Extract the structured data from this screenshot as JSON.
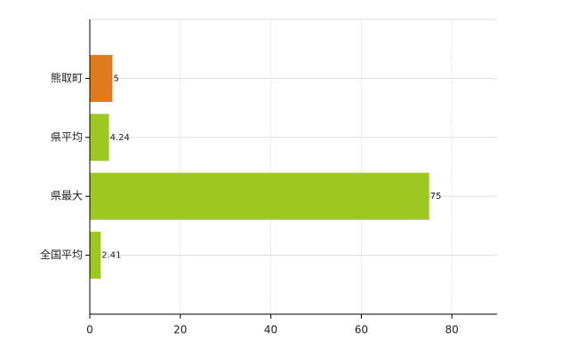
{
  "chart_data": {
    "type": "bar",
    "orientation": "horizontal",
    "categories": [
      "熊取町",
      "県平均",
      "県最大",
      "全国平均"
    ],
    "values": [
      5,
      4.24,
      75,
      2.41
    ],
    "colors": [
      "#e07a1f",
      "#9dc822",
      "#9dc822",
      "#9dc822"
    ],
    "xlim": [
      0,
      90
    ],
    "xticks": [
      0,
      20,
      40,
      60,
      80
    ],
    "grid": true
  }
}
